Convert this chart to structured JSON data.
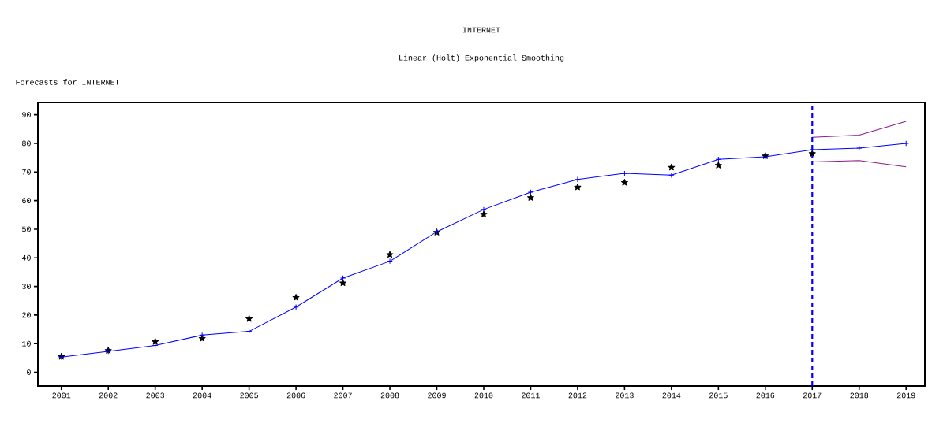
{
  "chart_data": {
    "type": "line",
    "title": "INTERNET",
    "subtitle": "Linear (Holt) Exponential Smoothing",
    "annotations": [
      "Forecasts for INTERNET"
    ],
    "xlim": [
      2000.5,
      2019.4
    ],
    "ylim": [
      -4.8,
      94.3
    ],
    "xticks": [
      2001,
      2002,
      2003,
      2004,
      2005,
      2006,
      2007,
      2008,
      2009,
      2010,
      2011,
      2012,
      2013,
      2014,
      2015,
      2016,
      2017,
      2018,
      2019
    ],
    "yticks": [
      0,
      10,
      20,
      30,
      40,
      50,
      60,
      70,
      80,
      90
    ],
    "series": [
      {
        "color": "#0000ff",
        "marker": "cross",
        "x": [
          2001,
          2002,
          2003,
          2004,
          2005,
          2006,
          2007,
          2008,
          2009,
          2010,
          2011,
          2012,
          2013,
          2014,
          2015,
          2016,
          2017,
          2018,
          2019
        ],
        "values": [
          5.3,
          7.3,
          9.4,
          13.0,
          14.3,
          22.8,
          32.9,
          38.8,
          49.1,
          56.9,
          62.9,
          67.4,
          69.5,
          68.9,
          74.4,
          75.3,
          77.8,
          78.3,
          80.0
        ]
      },
      {
        "type": "scatter",
        "color": "#000000",
        "marker": "star",
        "x": [
          2001,
          2002,
          2003,
          2004,
          2005,
          2006,
          2007,
          2008,
          2009,
          2010,
          2011,
          2012,
          2013,
          2014,
          2015,
          2016,
          2017
        ],
        "values": [
          5.5,
          7.6,
          10.7,
          11.8,
          18.7,
          26.1,
          31.2,
          41.1,
          48.9,
          55.2,
          61.0,
          64.7,
          66.3,
          71.6,
          72.3,
          75.6,
          76.4
        ]
      },
      {
        "color": "#8b1a8b",
        "marker": "none",
        "x": [
          2017,
          2018,
          2019
        ],
        "values": [
          82.1,
          82.9,
          87.7
        ]
      },
      {
        "color": "#8b1a8b",
        "marker": "none",
        "x": [
          2017,
          2018,
          2019
        ],
        "values": [
          73.5,
          74.0,
          71.8
        ]
      }
    ],
    "ref_lines": [
      {
        "axis": "x",
        "value": 2017,
        "color": "#0000ff",
        "line_style": "dashed"
      }
    ]
  }
}
